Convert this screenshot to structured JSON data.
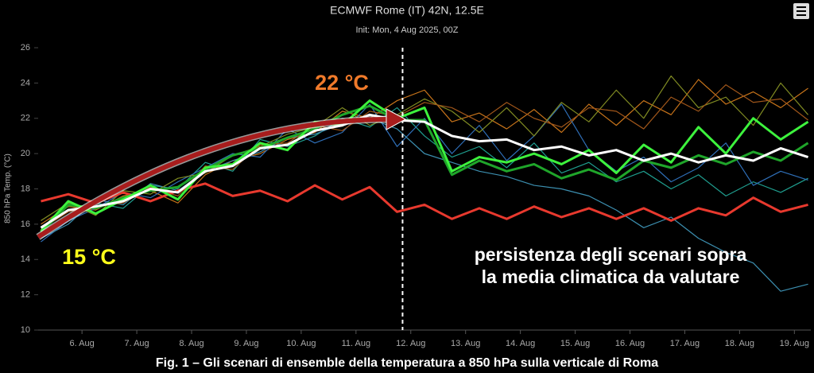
{
  "chart_data": {
    "type": "line",
    "title": "ECMWF Rome (IT) 42N, 12.5E",
    "subtitle": "Init: Mon, 4 Aug 2025, 00Z",
    "y_label": "850 hPa Temp. (°C)",
    "annotations": [
      "22 °C",
      "15 °C",
      "persistenza degli scenari sopra",
      "la media climatica da valutare"
    ],
    "caption": "Fig. 1 – Gli scenari di ensemble della temperatura a 850 hPa sulla verticale di Roma",
    "xlim": [
      5.2,
      19.3
    ],
    "xticks": [
      {
        "value": 6,
        "label": "6. Aug"
      },
      {
        "value": 7,
        "label": "7. Aug"
      },
      {
        "value": 8,
        "label": "8. Aug"
      },
      {
        "value": 9,
        "label": "9. Aug"
      },
      {
        "value": 10,
        "label": "10. Aug"
      },
      {
        "value": 11,
        "label": "11. Aug"
      },
      {
        "value": 12,
        "label": "12. Aug"
      },
      {
        "value": 13,
        "label": "13. Aug"
      },
      {
        "value": 14,
        "label": "14. Aug"
      },
      {
        "value": 15,
        "label": "15. Aug"
      },
      {
        "value": 16,
        "label": "16. Aug"
      },
      {
        "value": 17,
        "label": "17. Aug"
      },
      {
        "value": 18,
        "label": "18. Aug"
      },
      {
        "value": 19,
        "label": "19. Aug"
      }
    ],
    "ylim": [
      10,
      26
    ],
    "yticks": [
      10,
      12,
      14,
      16,
      18,
      20,
      22,
      24,
      26
    ],
    "vline": 11.85,
    "x": [
      5.25,
      5.75,
      6.25,
      6.75,
      7.25,
      7.75,
      8.25,
      8.75,
      9.25,
      9.75,
      10.25,
      10.75,
      11.25,
      11.75,
      12.25,
      12.75,
      13.25,
      13.75,
      14.25,
      14.75,
      15.25,
      15.75,
      16.25,
      16.75,
      17.25,
      17.75,
      18.25,
      18.75,
      19.25
    ],
    "series": [
      {
        "color": "#c8741a",
        "values": [
          16.0,
          17.0,
          16.8,
          17.6,
          17.9,
          17.2,
          18.8,
          19.6,
          20.0,
          20.8,
          21.2,
          22.4,
          22.0,
          23.0,
          23.6,
          21.8,
          22.3,
          21.4,
          22.5,
          21.2,
          22.8,
          21.6,
          23.0,
          22.2,
          24.2,
          22.8,
          23.5,
          22.6,
          23.7
        ]
      },
      {
        "color": "#1f9e8f",
        "values": [
          15.4,
          16.5,
          17.2,
          16.9,
          18.2,
          18.0,
          19.5,
          19.0,
          20.8,
          20.4,
          21.0,
          22.0,
          21.5,
          22.6,
          21.0,
          19.8,
          20.4,
          19.2,
          20.6,
          18.9,
          19.5,
          18.4,
          19.0,
          18.0,
          18.8,
          17.6,
          18.4,
          17.8,
          18.6
        ]
      },
      {
        "color": "#2f6fb8",
        "values": [
          15.0,
          16.2,
          16.9,
          17.8,
          17.5,
          18.4,
          19.2,
          20.0,
          19.8,
          21.4,
          20.6,
          21.2,
          22.8,
          20.4,
          22.0,
          20.0,
          21.6,
          19.6,
          21.0,
          22.8,
          20.2,
          19.0,
          19.8,
          18.4,
          19.2,
          20.6,
          18.2,
          19.0,
          18.5
        ]
      },
      {
        "color": "#3c8fb0",
        "values": [
          15.2,
          16.0,
          17.4,
          17.1,
          18.3,
          17.9,
          19.0,
          19.6,
          20.1,
          20.9,
          21.1,
          21.7,
          22.0,
          21.4,
          20.0,
          19.5,
          19.0,
          18.7,
          18.2,
          18.0,
          17.6,
          16.8,
          15.8,
          16.4,
          15.2,
          14.4,
          13.8,
          12.2,
          12.6
        ]
      },
      {
        "color": "#7f8a22",
        "values": [
          16.2,
          17.2,
          16.5,
          17.9,
          17.7,
          18.6,
          18.9,
          19.9,
          20.4,
          21.1,
          21.5,
          22.6,
          21.6,
          22.2,
          23.1,
          22.4,
          21.2,
          22.6,
          21.0,
          22.9,
          21.8,
          23.6,
          22.0,
          24.4,
          22.6,
          23.2,
          21.6,
          24.0,
          22.2
        ]
      },
      {
        "color": "#a0561a",
        "values": [
          15.7,
          16.7,
          17.0,
          17.2,
          18.1,
          17.6,
          19.3,
          19.1,
          20.5,
          20.6,
          21.6,
          21.3,
          22.4,
          22.1,
          22.9,
          22.6,
          21.8,
          22.9,
          22.0,
          21.5,
          22.6,
          22.4,
          21.4,
          23.2,
          22.4,
          23.9,
          22.9,
          23.1,
          21.9
        ]
      },
      {
        "color": "#e8392e",
        "values": [
          17.3,
          17.7,
          17.2,
          17.8,
          17.3,
          17.9,
          18.3,
          17.6,
          17.9,
          17.3,
          18.2,
          17.4,
          18.1,
          16.7,
          17.1,
          16.3,
          16.9,
          16.3,
          17.0,
          16.4,
          16.9,
          16.3,
          16.9,
          16.2,
          16.9,
          16.5,
          17.5,
          16.7,
          17.1
        ]
      },
      {
        "color": "#1fa52a",
        "values": [
          15.5,
          17.1,
          16.9,
          17.5,
          17.9,
          18.1,
          19.1,
          19.9,
          20.3,
          20.9,
          21.4,
          22.2,
          22.7,
          21.9,
          21.9,
          18.8,
          19.6,
          19.0,
          19.4,
          18.6,
          19.1,
          18.5,
          19.6,
          19.2,
          19.9,
          19.4,
          20.1,
          19.6,
          20.6
        ]
      },
      {
        "color": "#3df23d",
        "values": [
          15.6,
          17.3,
          16.6,
          17.4,
          18.2,
          17.4,
          19.2,
          19.4,
          20.6,
          20.2,
          21.8,
          21.6,
          23.0,
          22.0,
          22.6,
          19.0,
          19.8,
          19.5,
          20.0,
          19.4,
          20.2,
          18.9,
          20.5,
          19.5,
          21.5,
          20.0,
          22.0,
          20.8,
          21.8
        ]
      },
      {
        "color": "#ffffff",
        "values": [
          15.8,
          16.8,
          17.0,
          17.3,
          18.0,
          17.8,
          19.0,
          19.3,
          20.3,
          20.5,
          21.3,
          21.6,
          22.2,
          21.9,
          21.8,
          21.0,
          20.7,
          20.8,
          20.2,
          20.4,
          19.9,
          20.2,
          19.6,
          20.0,
          19.5,
          19.9,
          19.6,
          20.3,
          19.8
        ]
      }
    ]
  }
}
